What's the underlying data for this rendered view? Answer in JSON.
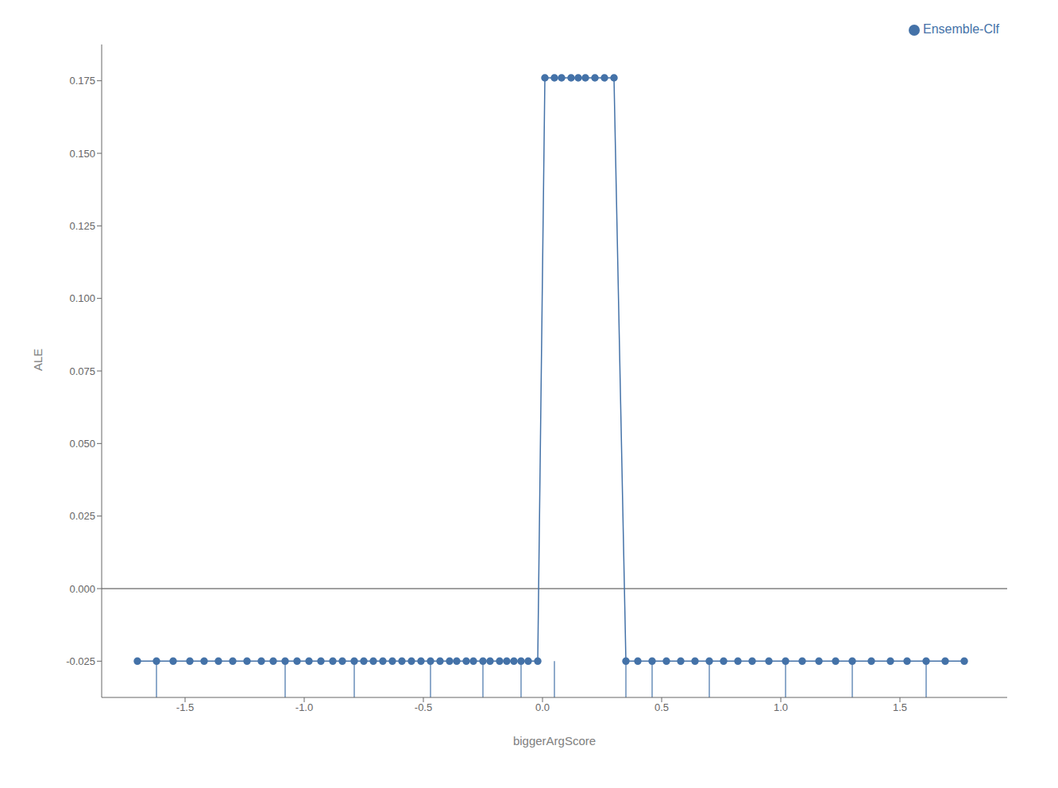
{
  "chart_data": {
    "type": "line",
    "xlabel": "biggerArgScore",
    "ylabel": "ALE",
    "x": [
      -1.7,
      -1.62,
      -1.55,
      -1.48,
      -1.42,
      -1.36,
      -1.3,
      -1.24,
      -1.18,
      -1.13,
      -1.08,
      -1.03,
      -0.98,
      -0.93,
      -0.88,
      -0.84,
      -0.79,
      -0.75,
      -0.71,
      -0.67,
      -0.63,
      -0.59,
      -0.55,
      -0.51,
      -0.47,
      -0.43,
      -0.39,
      -0.36,
      -0.32,
      -0.29,
      -0.25,
      -0.22,
      -0.18,
      -0.15,
      -0.12,
      -0.09,
      -0.06,
      -0.02,
      0.01,
      0.05,
      0.08,
      0.12,
      0.15,
      0.18,
      0.22,
      0.26,
      0.3,
      0.35,
      0.4,
      0.46,
      0.52,
      0.58,
      0.64,
      0.7,
      0.76,
      0.82,
      0.88,
      0.95,
      1.02,
      1.09,
      1.16,
      1.23,
      1.3,
      1.38,
      1.46,
      1.53,
      1.61,
      1.69,
      1.77
    ],
    "series": [
      {
        "name": "Ensemble-Clf",
        "color": "#4472a8",
        "marker": "circle",
        "values": [
          -0.025,
          -0.025,
          -0.025,
          -0.025,
          -0.025,
          -0.025,
          -0.025,
          -0.025,
          -0.025,
          -0.025,
          -0.025,
          -0.025,
          -0.025,
          -0.025,
          -0.025,
          -0.025,
          -0.025,
          -0.025,
          -0.025,
          -0.025,
          -0.025,
          -0.025,
          -0.025,
          -0.025,
          -0.025,
          -0.025,
          -0.025,
          -0.025,
          -0.025,
          -0.025,
          -0.025,
          -0.025,
          -0.025,
          -0.025,
          -0.025,
          -0.025,
          -0.025,
          -0.025,
          0.176,
          0.176,
          0.176,
          0.176,
          0.176,
          0.176,
          0.176,
          0.176,
          0.176,
          -0.025,
          -0.025,
          -0.025,
          -0.025,
          -0.025,
          -0.025,
          -0.025,
          -0.025,
          -0.025,
          -0.025,
          -0.025,
          -0.025,
          -0.025,
          -0.025,
          -0.025,
          -0.025,
          -0.025,
          -0.025,
          -0.025,
          -0.025,
          -0.025,
          -0.025
        ]
      }
    ],
    "xlim": [
      -1.85,
      1.95
    ],
    "ylim": [
      -0.0375,
      0.1875
    ],
    "xticks": [
      -1.5,
      {
        "value": -1.0,
        "label": "-1.0"
      },
      -0.5,
      {
        "value": 0.0,
        "label": "0.0"
      },
      0.5,
      {
        "value": 1.0,
        "label": "1.0"
      },
      1.5
    ],
    "yticks": [
      -0.025,
      {
        "value": 0.0,
        "label": "0.000"
      },
      0.025,
      {
        "value": 0.05,
        "label": "0.050"
      },
      0.075,
      {
        "value": 0.1,
        "label": "0.100"
      },
      0.125,
      {
        "value": 0.15,
        "label": "0.150"
      },
      0.175
    ],
    "legend": "upper right",
    "hline_y": 0.0,
    "hline_color": "#808080",
    "rug_x": [
      -1.62,
      -1.08,
      -0.79,
      -0.47,
      -0.25,
      -0.09,
      0.05,
      0.35,
      0.46,
      0.7,
      1.02,
      1.3,
      1.61
    ],
    "rug_y": [
      -0.0375,
      -0.025
    ]
  }
}
